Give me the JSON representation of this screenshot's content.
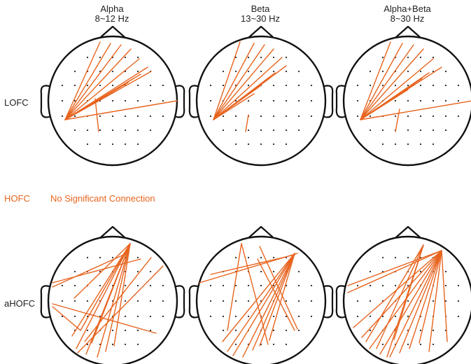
{
  "columns": [
    {
      "name": "Alpha",
      "band": "8~12 Hz"
    },
    {
      "name": "Beta",
      "band": "13~30 Hz"
    },
    {
      "name": "Alpha+Beta",
      "band": "8~30 Hz"
    }
  ],
  "rows": {
    "lofc": "LOFC",
    "hofc": "HOFC",
    "hofc_note": "No Significant Connection",
    "ahofc": "aHOFC"
  },
  "colors": {
    "connection": "#E8641E",
    "head_outline": "#111111",
    "electrode": "#222222"
  }
}
